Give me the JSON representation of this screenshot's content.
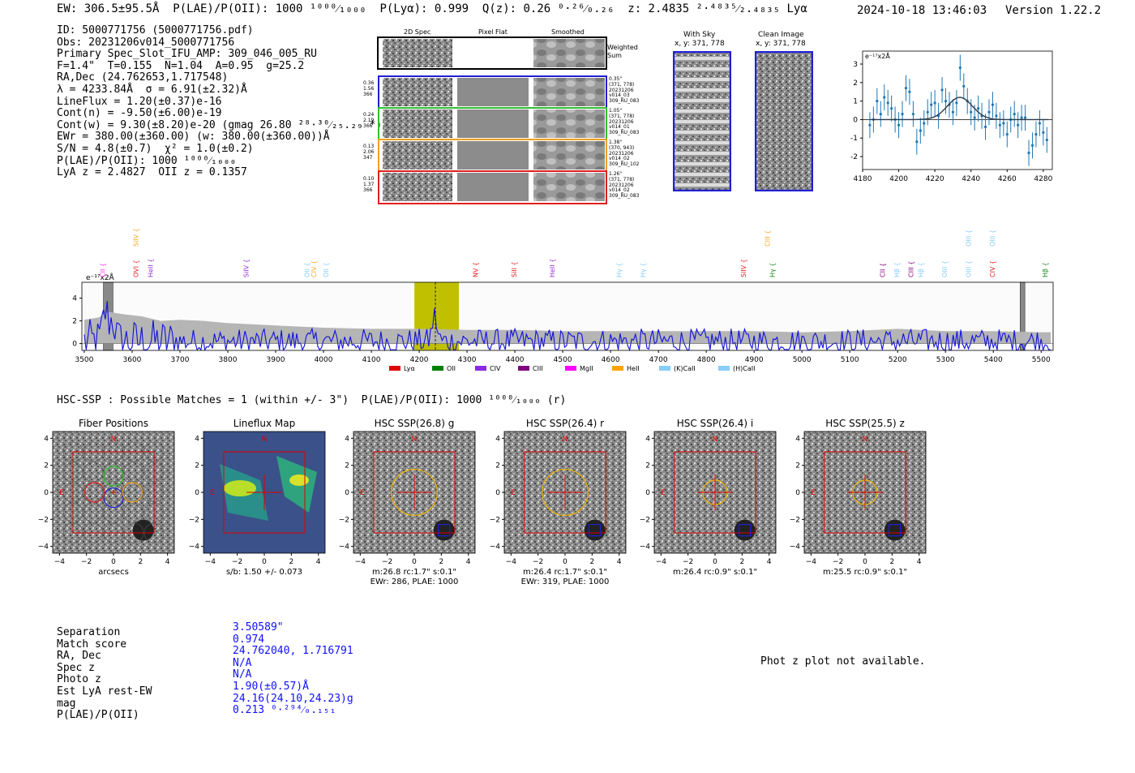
{
  "header": {
    "line": "EW: 306.5±95.5Å  P(LAE)/P(OII): 1000 ¹⁰⁰⁰⁄₁₀₀₀  P(Lyα): 0.999  Q(z): 0.26 ⁰·²⁶⁄₀.₂₆  z: 2.4835 ²·⁴⁸³⁵⁄₂.₄₈₃₅ Lyα",
    "timestamp": "2024-10-18 13:46:03",
    "version": "Version 1.22.2"
  },
  "info_lines": [
    "ID: 5000771756 (5000771756.pdf)",
    "Obs: 20231206v014_5000771756",
    "Primary Spec_Slot_IFU_AMP: 309_046_005_RU",
    "F=1.4\"  T=0.155  N=1.04  A=0.95  g=25.2",
    "RA,Dec (24.762653,1.717548)",
    "λ = 4233.84Å  σ = 6.91(±2.32)Å",
    "LineFlux = 1.20(±0.37)e-16",
    "Cont(n) = -9.50(±6.00)e-19",
    "Cont(w) = 9.30(±8.20)e-20 (gmag 26.80 ²⁸·³⁰⁄₂₅.₂₉ *)",
    "EWr = 380.00(±360.00) (w: 380.00(±360.00))Å",
    "S/N = 4.8(±0.7)  χ² = 1.0(±0.2)",
    "P(LAE)/P(OII): 1000 ¹⁰⁰⁰⁄₁₀₀₀",
    "LyA z = 2.4827  OII z = 0.1357"
  ],
  "cutouts": {
    "col_titles": [
      "2D Spec",
      "Pixel Flat",
      "Smoothed"
    ],
    "weighted_label": "Weighted Sum",
    "rows": [
      {
        "left": [
          "0.36",
          "1.56",
          "366"
        ],
        "right": [
          "0.35\"",
          "(371, 778)",
          "20231206",
          "v014_03",
          "309_RU_083"
        ],
        "color": "#2020d0"
      },
      {
        "left": [
          "0.24",
          "2.19",
          "366"
        ],
        "right": [
          "1.05\"",
          "(371, 778)",
          "20231206",
          "v014_01",
          "309_RU_083"
        ],
        "color": "#30c030"
      },
      {
        "left": [
          "0.13",
          "2.06",
          "347"
        ],
        "right": [
          "1.38\"",
          "(370, 943)",
          "20231206",
          "v014_02",
          "309_RU_102"
        ],
        "color": "#f0a020"
      },
      {
        "left": [
          "0.10",
          "1.37",
          "366"
        ],
        "right": [
          "1.26\"",
          "(371, 778)",
          "20231206",
          "v014_02",
          "309_RU_083"
        ],
        "color": "#e02020"
      }
    ]
  },
  "with_sky": {
    "title": "With Sky",
    "coords": "x, y: 371, 778"
  },
  "clean_image": {
    "title": "Clean Image",
    "coords": "x, y: 371, 778"
  },
  "small_plot_units": "e⁻¹⁷x2Å",
  "spectrum_units": "e⁻¹⁷x2Å",
  "line_markers": [
    {
      "label": "CII",
      "x": 3538,
      "color": "#ff33ff",
      "level": 0
    },
    {
      "label": "OVI",
      "x": 3608,
      "color": "#e02020",
      "level": 0
    },
    {
      "label": "SiIV",
      "x": 3608,
      "color": "#f5a623",
      "level": 1
    },
    {
      "label": "HeII",
      "x": 3638,
      "color": "#9a2fd6",
      "level": 0
    },
    {
      "label": "SiIV",
      "x": 3838,
      "color": "#9a2fd6",
      "level": 0
    },
    {
      "label": "OII",
      "x": 3965,
      "color": "#87cefa",
      "level": 0
    },
    {
      "label": "CIV",
      "x": 3980,
      "color": "#f5a623",
      "level": 0
    },
    {
      "label": "OII",
      "x": 4005,
      "color": "#87cefa",
      "level": 0
    },
    {
      "label": "NV",
      "x": 4318,
      "color": "#e02020",
      "level": 0
    },
    {
      "label": "SiII",
      "x": 4398,
      "color": "#e02020",
      "level": 0
    },
    {
      "label": "HeII",
      "x": 4478,
      "color": "#9a2fd6",
      "level": 0
    },
    {
      "label": "Hγ",
      "x": 4618,
      "color": "#87cefa",
      "level": 0
    },
    {
      "label": "Hγ",
      "x": 4668,
      "color": "#87cefa",
      "level": 0
    },
    {
      "label": "SiIV",
      "x": 4878,
      "color": "#e02020",
      "level": 0
    },
    {
      "label": "CIII",
      "x": 4928,
      "color": "#f5a623",
      "level": 1
    },
    {
      "label": "Hγ",
      "x": 4938,
      "color": "#1a8c1a",
      "level": 0
    },
    {
      "label": "CII",
      "x": 5168,
      "color": "#800080",
      "level": 0
    },
    {
      "label": "Hβ",
      "x": 5198,
      "color": "#87cefa",
      "level": 0
    },
    {
      "label": "CIII",
      "x": 5228,
      "color": "#800080",
      "level": 0
    },
    {
      "label": "Hβ",
      "x": 5248,
      "color": "#87cefa",
      "level": 0
    },
    {
      "label": "OIII",
      "x": 5298,
      "color": "#87cefa",
      "level": 0
    },
    {
      "label": "OIII",
      "x": 5348,
      "color": "#87cefa",
      "level": 0
    },
    {
      "label": "OIII",
      "x": 5348,
      "color": "#87cefa",
      "level": 1
    },
    {
      "label": "OIII",
      "x": 5398,
      "color": "#87cefa",
      "level": 1
    },
    {
      "label": "CIV",
      "x": 5398,
      "color": "#e02020",
      "level": 0
    },
    {
      "label": "Hβ",
      "x": 5508,
      "color": "#1a8c1a",
      "level": 0
    }
  ],
  "legend": [
    {
      "label": "Lyα",
      "color": "#e00000"
    },
    {
      "label": "OII",
      "color": "#008000"
    },
    {
      "label": "CIV",
      "color": "#8a2be2"
    },
    {
      "label": "CIII",
      "color": "#800080"
    },
    {
      "label": "MgII",
      "color": "#ff00ff"
    },
    {
      "label": "HeII",
      "color": "#ffa500"
    },
    {
      "label": "(K)CaII",
      "color": "#87cefa"
    },
    {
      "label": "(H)CaII",
      "color": "#87cefa"
    }
  ],
  "hsc_header": "HSC-SSP : Possible Matches = 1 (within +/- 3\")  P(LAE)/P(OII): 1000 ¹⁰⁰⁰⁄₁₀₀₀ (r)",
  "panels": [
    {
      "title": "Fiber Positions",
      "caption": [
        "arcsecs"
      ],
      "ring": 0
    },
    {
      "title": "Lineflux Map",
      "caption": [
        "s/b: 1.50 +/- 0.073"
      ],
      "ring": 0
    },
    {
      "title": "HSC SSP(26.8) g",
      "caption": [
        "m:26.8 rc:1.7\"  s:0.1\"",
        "EWr: 286, PLAE: 1000"
      ],
      "ring": 1.7
    },
    {
      "title": "HSC SSP(26.4) r",
      "caption": [
        "m:26.4 rc:1.7\"  s:0.1\"",
        "EWr: 319, PLAE: 1000"
      ],
      "ring": 1.7
    },
    {
      "title": "HSC SSP(26.4) i",
      "caption": [
        "m:26.4 rc:0.9\"  s:0.1\""
      ],
      "ring": 0.9
    },
    {
      "title": "HSC SSP(25.5) z",
      "caption": [
        "m:25.5 rc:0.9\"  s:0.1\""
      ],
      "ring": 0.9
    }
  ],
  "match_table": [
    {
      "label": "Separation",
      "value": "3.50589\""
    },
    {
      "label": "Match score",
      "value": "0.974"
    },
    {
      "label": "RA, Dec",
      "value": "24.762040, 1.716791"
    },
    {
      "label": "Spec z",
      "value": "N/A"
    },
    {
      "label": "Photo z",
      "value": "N/A"
    },
    {
      "label": "Est LyA rest-EW",
      "value": "1.90(±0.57)Å"
    },
    {
      "label": "mag",
      "value": "24.16(24.10,24.23)g"
    },
    {
      "label": "P(LAE)/P(OII)",
      "value": "0.213 ⁰·²⁹⁴⁄₀.₁₅₁"
    }
  ],
  "phot_z_note": "Phot z plot not available.",
  "chart_data": [
    {
      "type": "scatter",
      "title": "Line fit (errorbars + gaussian)",
      "units_label": "e⁻¹⁷x2Å",
      "xlim": [
        4180,
        4285
      ],
      "ylim": [
        -2.7,
        3.7
      ],
      "xticks": [
        4180,
        4200,
        4220,
        4240,
        4260,
        4280
      ],
      "yticks": [
        -2,
        -1,
        0,
        1,
        2,
        3
      ],
      "x": [
        4184,
        4186,
        4188,
        4190,
        4192,
        4194,
        4196,
        4198,
        4200,
        4202,
        4204,
        4206,
        4208,
        4210,
        4212,
        4214,
        4216,
        4218,
        4220,
        4222,
        4224,
        4226,
        4228,
        4230,
        4232,
        4234,
        4236,
        4238,
        4240,
        4242,
        4244,
        4246,
        4248,
        4250,
        4252,
        4254,
        4256,
        4258,
        4260,
        4262,
        4264,
        4266,
        4268,
        4270,
        4272,
        4274,
        4276,
        4278,
        4280,
        4282
      ],
      "y": [
        -0.3,
        0.0,
        1.0,
        0.3,
        1.2,
        0.9,
        0.6,
        0.0,
        -0.3,
        0.3,
        1.7,
        1.5,
        0.3,
        -1.2,
        -0.6,
        -0.2,
        0.4,
        0.8,
        0.9,
        0.2,
        1.6,
        1.0,
        0.8,
        0.4,
        0.9,
        2.8,
        1.8,
        1.0,
        0.4,
        0.1,
        0.6,
        0.2,
        -0.4,
        0.4,
        0.8,
        0.2,
        -0.3,
        -0.2,
        -0.8,
        0.0,
        0.3,
        -0.3,
        0.1,
        0.1,
        -1.8,
        -1.4,
        -0.8,
        -0.2,
        -0.7,
        -1.1
      ],
      "yerr": 0.7,
      "model": {
        "amplitude": 1.2,
        "center": 4233.84,
        "sigma": 6.91
      }
    },
    {
      "type": "line",
      "title": "Full spectrum",
      "units_label": "e⁻¹⁷x2Å",
      "xlim": [
        3495,
        5525
      ],
      "ylim": [
        -0.6,
        5.4
      ],
      "xticks": [
        3500,
        3600,
        3700,
        3800,
        3900,
        4000,
        4100,
        4200,
        4300,
        4400,
        4500,
        4600,
        4700,
        4800,
        4900,
        5000,
        5100,
        5200,
        5300,
        5400,
        5500
      ],
      "yticks": [
        0,
        2,
        4
      ],
      "error_band": [
        [
          3500,
          2.1
        ],
        [
          3530,
          2.3
        ],
        [
          3550,
          2.8
        ],
        [
          3580,
          2.6
        ],
        [
          3620,
          2.4
        ],
        [
          3660,
          2.0
        ],
        [
          3700,
          2.1
        ],
        [
          3750,
          2.0
        ],
        [
          3800,
          1.8
        ],
        [
          3850,
          1.7
        ],
        [
          3900,
          1.6
        ],
        [
          3950,
          1.5
        ],
        [
          4000,
          1.4
        ],
        [
          4100,
          1.3
        ],
        [
          4200,
          1.3
        ],
        [
          4300,
          1.2
        ],
        [
          4400,
          1.2
        ],
        [
          4500,
          1.1
        ],
        [
          4600,
          1.1
        ],
        [
          4700,
          1.1
        ],
        [
          4800,
          1.1
        ],
        [
          4900,
          1.1
        ],
        [
          5000,
          1.0
        ],
        [
          5100,
          1.1
        ],
        [
          5200,
          1.3
        ],
        [
          5300,
          1.1
        ],
        [
          5400,
          1.1
        ],
        [
          5500,
          1.0
        ],
        [
          5520,
          1.0
        ]
      ],
      "flux": {
        "x_start": 3500,
        "x_end": 5520,
        "step": 4,
        "noise_amplitude": 1.4,
        "features": [
          {
            "center": 3545,
            "amp": 2.6,
            "width": 6
          },
          {
            "center": 3560,
            "amp": 1.8,
            "width": 5
          },
          {
            "center": 4232,
            "amp": 2.2,
            "width": 5
          }
        ]
      },
      "highlight_region": [
        4190,
        4283
      ],
      "line_position": 4233.84,
      "masked_regions": [
        [
          3540,
          3560
        ],
        [
          5456,
          5466
        ]
      ]
    }
  ]
}
